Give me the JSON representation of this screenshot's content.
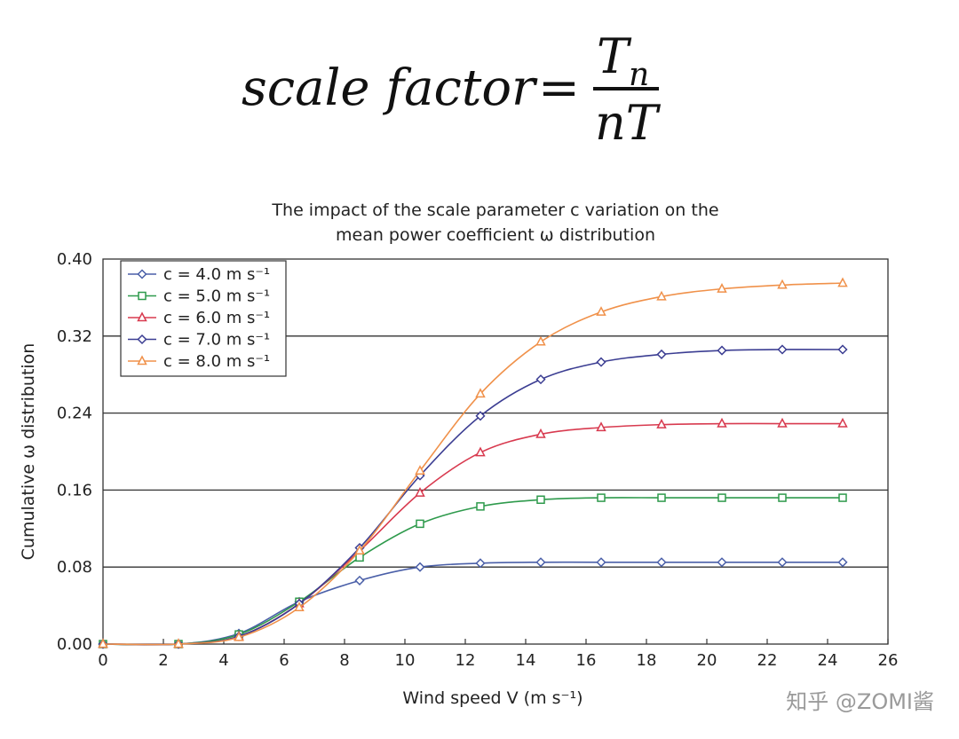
{
  "formula": {
    "lhs": "scale factor",
    "equals": "=",
    "numerator_base": "T",
    "numerator_sub": "n",
    "denominator": "nT"
  },
  "watermark": "知乎 @ZOMI酱",
  "colors": {
    "c4": "#4a5fa8",
    "c5": "#2e9a4c",
    "c6": "#d83a4f",
    "c7": "#3b3d92",
    "c8": "#f0914a",
    "grid": "#333333",
    "axis": "#333333"
  },
  "chart_data": {
    "type": "line",
    "title_line1": "The impact of the scale parameter c variation on the",
    "title_line2": "mean power coefficient ω distribution",
    "xlabel": "Wind speed V (m s⁻¹)",
    "ylabel": "Cumulative ω distribution",
    "xlim": [
      0,
      26
    ],
    "ylim": [
      0,
      0.4
    ],
    "xticks": [
      0,
      2,
      4,
      6,
      8,
      10,
      12,
      14,
      16,
      18,
      20,
      22,
      24,
      26
    ],
    "yticks": [
      0.0,
      0.08,
      0.16,
      0.24,
      0.32,
      0.4
    ],
    "ytick_labels": [
      "0.00",
      "0.08",
      "0.16",
      "0.24",
      "0.32",
      "0.40"
    ],
    "grid": "horizontal",
    "legend_position": "top-left",
    "x": [
      0,
      2.5,
      4.5,
      6.5,
      8.5,
      10.5,
      12.5,
      14.5,
      16.5,
      18.5,
      20.5,
      22.5,
      24.5
    ],
    "series": [
      {
        "name": "c = 4.0 m s⁻¹",
        "marker": "diamond",
        "color": "#4a5fa8",
        "values": [
          0.0,
          0.0,
          0.011,
          0.044,
          0.066,
          0.08,
          0.084,
          0.085,
          0.085,
          0.085,
          0.085,
          0.085,
          0.085
        ]
      },
      {
        "name": "c = 5.0 m s⁻¹",
        "marker": "square",
        "color": "#2e9a4c",
        "values": [
          0.0,
          0.0,
          0.01,
          0.044,
          0.09,
          0.125,
          0.143,
          0.15,
          0.152,
          0.152,
          0.152,
          0.152,
          0.152
        ]
      },
      {
        "name": "c = 6.0 m s⁻¹",
        "marker": "triangle",
        "color": "#d83a4f",
        "values": [
          0.0,
          0.0,
          0.008,
          0.042,
          0.097,
          0.157,
          0.199,
          0.218,
          0.225,
          0.228,
          0.229,
          0.229,
          0.229
        ]
      },
      {
        "name": "c = 7.0 m s⁻¹",
        "marker": "diamond",
        "color": "#3b3d92",
        "values": [
          0.0,
          0.0,
          0.008,
          0.042,
          0.1,
          0.175,
          0.237,
          0.275,
          0.293,
          0.301,
          0.305,
          0.306,
          0.306
        ]
      },
      {
        "name": "c = 8.0 m s⁻¹",
        "marker": "triangle",
        "color": "#f0914a",
        "values": [
          0.0,
          0.0,
          0.007,
          0.038,
          0.097,
          0.18,
          0.26,
          0.314,
          0.345,
          0.361,
          0.369,
          0.373,
          0.375
        ]
      }
    ]
  }
}
